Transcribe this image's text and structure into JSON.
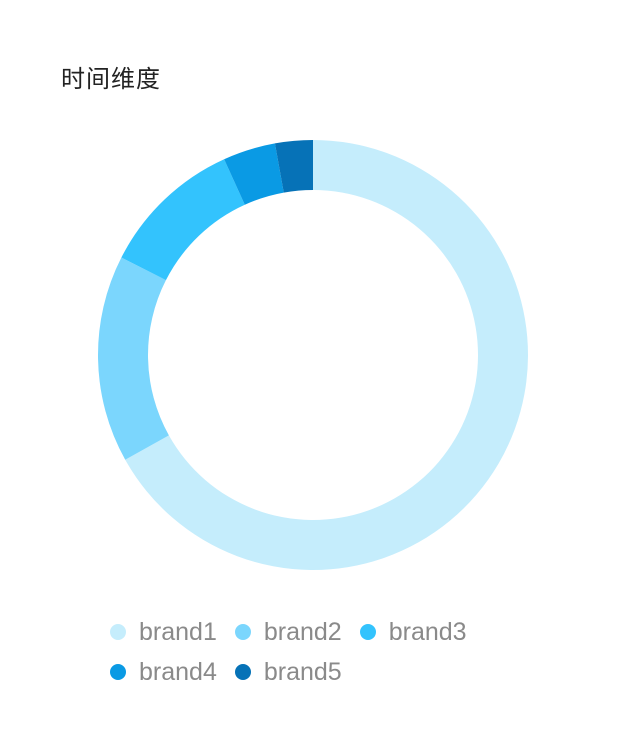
{
  "page": {
    "title": "时间维度"
  },
  "legend": {
    "items": [
      {
        "label": "brand1",
        "color": "#c5edfc"
      },
      {
        "label": "brand2",
        "color": "#7bd6fd"
      },
      {
        "label": "brand3",
        "color": "#33c3fd"
      },
      {
        "label": "brand4",
        "color": "#0a9ae4"
      },
      {
        "label": "brand5",
        "color": "#0672b7"
      }
    ]
  },
  "chart_data": {
    "type": "pie",
    "variant": "donut",
    "title": "时间维度",
    "categories": [
      "brand1",
      "brand2",
      "brand3",
      "brand4",
      "brand5"
    ],
    "values": [
      66.1,
      15.4,
      10.6,
      3.9,
      2.8
    ],
    "colors": [
      "#c5edfc",
      "#7bd6fd",
      "#33c3fd",
      "#0a9ae4",
      "#0672b7"
    ],
    "legend": "bottom"
  }
}
